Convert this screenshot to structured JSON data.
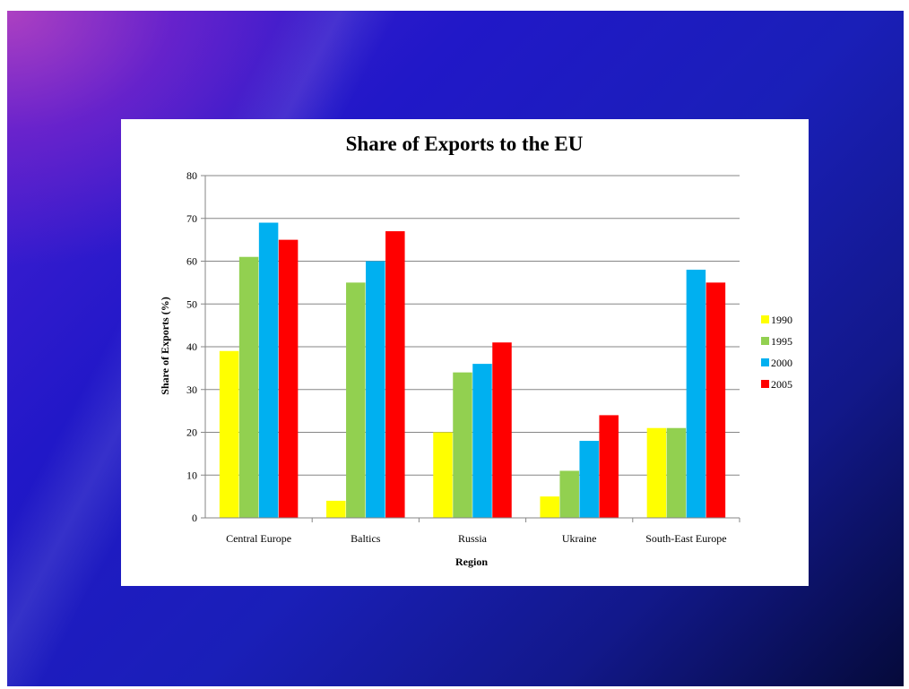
{
  "slide": {
    "background_colors": [
      "#4a1fd4",
      "#2118c8",
      "#12188a",
      "#050a3a"
    ]
  },
  "chart_data": {
    "type": "bar",
    "title": "Share of Exports to the EU",
    "xlabel": "Region",
    "ylabel": "Share of Exports (%)",
    "ylim": [
      0,
      80
    ],
    "yticks": [
      0,
      10,
      20,
      30,
      40,
      50,
      60,
      70,
      80
    ],
    "grid": true,
    "legend_position": "right",
    "categories": [
      "Central Europe",
      "Baltics",
      "Russia",
      "Ukraine",
      "South-East Europe"
    ],
    "series": [
      {
        "name": "1990",
        "color": "#ffff00",
        "values": [
          39,
          4,
          20,
          5,
          21
        ]
      },
      {
        "name": "1995",
        "color": "#92d050",
        "values": [
          61,
          55,
          34,
          11,
          21
        ]
      },
      {
        "name": "2000",
        "color": "#00b0f0",
        "values": [
          69,
          60,
          36,
          18,
          58
        ]
      },
      {
        "name": "2005",
        "color": "#ff0000",
        "values": [
          65,
          67,
          41,
          24,
          55
        ]
      }
    ]
  }
}
